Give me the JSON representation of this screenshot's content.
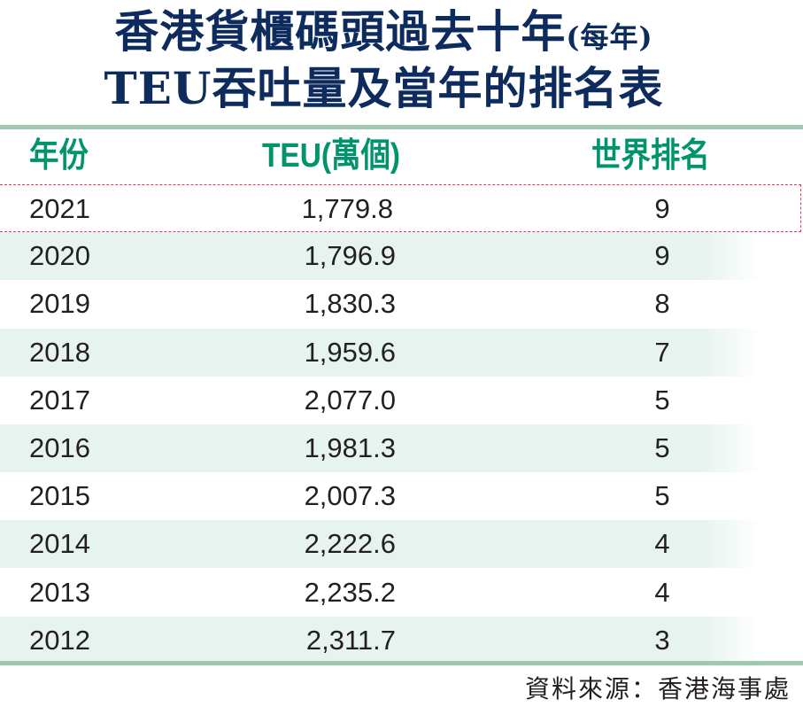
{
  "title": {
    "line1": "香港貨櫃碼頭過去十年",
    "line1_suffix": "(每年)",
    "line2": "TEU吞吐量及當年的排名表"
  },
  "colors": {
    "title": "#0e2b5e",
    "header": "#00936c",
    "rule": "#9dc9b1",
    "stripe": "#e6f3ef",
    "highlight_border": "#e63a4f"
  },
  "chart_data": {
    "type": "table",
    "columns": [
      "年份",
      "TEU(萬個)",
      "世界排名"
    ],
    "rows": [
      {
        "year": "2021",
        "teu": "1,779.8",
        "rank": "9",
        "highlighted": true
      },
      {
        "year": "2020",
        "teu": "1,796.9",
        "rank": "9"
      },
      {
        "year": "2019",
        "teu": "1,830.3",
        "rank": "8"
      },
      {
        "year": "2018",
        "teu": "1,959.6",
        "rank": "7"
      },
      {
        "year": "2017",
        "teu": "2,077.0",
        "rank": "5"
      },
      {
        "year": "2016",
        "teu": "1,981.3",
        "rank": "5"
      },
      {
        "year": "2015",
        "teu": "2,007.3",
        "rank": "5"
      },
      {
        "year": "2014",
        "teu": "2,222.6",
        "rank": "4"
      },
      {
        "year": "2013",
        "teu": "2,235.2",
        "rank": "4"
      },
      {
        "year": "2012",
        "teu": "2,311.7",
        "rank": "3"
      }
    ]
  },
  "source": "資料來源：香港海事處"
}
